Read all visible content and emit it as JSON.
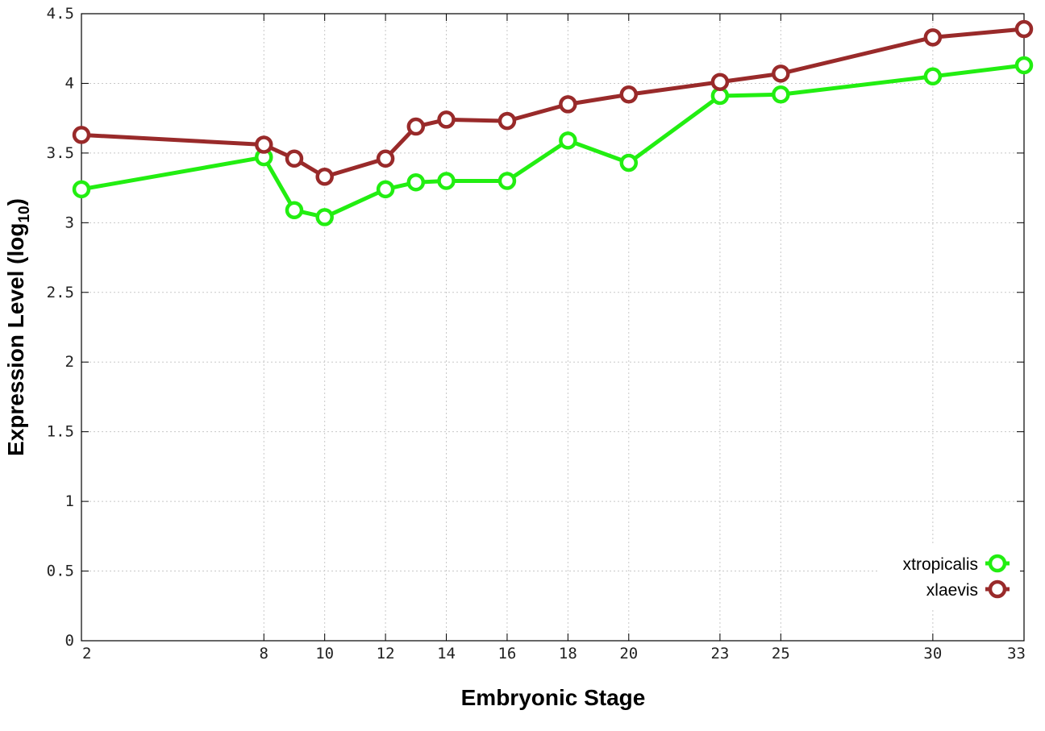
{
  "chart_data": {
    "type": "line",
    "xlabel": "Embryonic Stage",
    "ylabel": "Expression Level (log",
    "ylabel_sub": "10",
    "ylabel_end": ")",
    "xlim": [
      2,
      33
    ],
    "ylim": [
      0,
      4.5
    ],
    "x_ticks": [
      2,
      8,
      10,
      12,
      14,
      16,
      18,
      20,
      23,
      25,
      30,
      33
    ],
    "y_ticks": [
      0,
      0.5,
      1,
      1.5,
      2,
      2.5,
      3,
      3.5,
      4,
      4.5
    ],
    "y_tick_labels": [
      "0",
      "0.5",
      "1",
      "1.5",
      "2",
      "2.5",
      "3",
      "3.5",
      "4",
      "4.5"
    ],
    "grid": true,
    "legend_position": "bottom-right",
    "x": [
      2,
      8,
      9,
      10,
      12,
      13,
      14,
      16,
      18,
      20,
      23,
      25,
      30,
      33
    ],
    "series": [
      {
        "name": "xtropicalis",
        "color": "#22ee11",
        "values": [
          3.24,
          3.47,
          3.09,
          3.04,
          3.24,
          3.29,
          3.3,
          3.3,
          3.59,
          3.43,
          3.91,
          3.92,
          4.05,
          4.13
        ]
      },
      {
        "name": "xlaevis",
        "color": "#992a2a",
        "values": [
          3.63,
          3.56,
          3.46,
          3.33,
          3.46,
          3.69,
          3.74,
          3.73,
          3.85,
          3.92,
          4.01,
          4.07,
          4.33,
          4.39
        ]
      }
    ]
  }
}
